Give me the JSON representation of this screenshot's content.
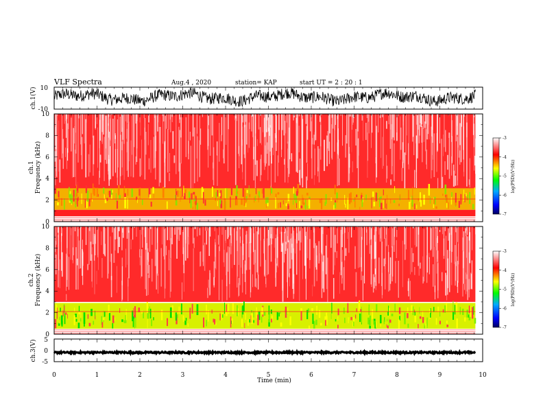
{
  "header": {
    "title": "VLF Spectra",
    "date": "Aug.4  , 2020",
    "station": "station= KAP",
    "start": "start  UT  =   2 : 20 : 1"
  },
  "chart_data": [
    {
      "type": "line",
      "panel": "ch1-waveform",
      "ylabel": "ch.1(V)",
      "ylim": [
        -10,
        10
      ],
      "yticks": [
        "10",
        "-10"
      ],
      "xlim": [
        0,
        10
      ],
      "data_xrange": [
        0,
        9.83
      ],
      "series": [
        {
          "color": "#000000",
          "approx_range": [
            -7,
            9
          ]
        }
      ]
    },
    {
      "type": "heatmap",
      "panel": "ch1-spectrogram",
      "ylabel": "ch.1\nFrequency  (kHz)",
      "ylim": [
        0,
        10
      ],
      "yticks": [
        "0",
        "2",
        "4",
        "6",
        "8",
        "10"
      ],
      "xlim": [
        0,
        10
      ],
      "data_xrange": [
        0,
        9.83
      ],
      "bands_khz": [
        {
          "from": 0.0,
          "to": 0.5,
          "level": "striped"
        },
        {
          "from": 0.5,
          "to": 1.2,
          "level": -3.5
        },
        {
          "from": 1.2,
          "to": 3.0,
          "level": -4.2
        },
        {
          "from": 3.0,
          "to": 10.0,
          "level": -3.3
        }
      ]
    },
    {
      "type": "heatmap",
      "panel": "ch2-spectrogram",
      "ylabel": "ch.2\nFrequency  (kHz)",
      "ylim": [
        0,
        10
      ],
      "yticks": [
        "0",
        "2",
        "4",
        "6",
        "8",
        "10"
      ],
      "xlim": [
        0,
        10
      ],
      "data_xrange": [
        0,
        9.83
      ],
      "bands_khz": [
        {
          "from": 0.0,
          "to": 0.5,
          "level": "striped"
        },
        {
          "from": 0.5,
          "to": 2.6,
          "level": -4.8
        },
        {
          "from": 2.6,
          "to": 3.0,
          "level": -4.2
        },
        {
          "from": 3.0,
          "to": 10.0,
          "level": -3.3
        }
      ]
    },
    {
      "type": "line",
      "panel": "ch3-waveform",
      "ylabel": "ch.3(V)",
      "ylim": [
        -5,
        5
      ],
      "yticks": [
        "5",
        "0",
        "-5"
      ],
      "xlim": [
        0,
        10
      ],
      "data_xrange": [
        0,
        9.83
      ],
      "series": [
        {
          "color": "#000000",
          "approx_range": [
            -1.3,
            -0.6
          ]
        }
      ]
    }
  ],
  "xaxis": {
    "label": "Time  (min)",
    "ticks": [
      "0",
      "1",
      "2",
      "3",
      "4",
      "5",
      "6",
      "7",
      "8",
      "9",
      "10"
    ]
  },
  "colorbar": {
    "label": "log(PSD)(V²/Hz)",
    "range": [
      -7,
      -3
    ],
    "ticks": [
      "-3",
      "-4",
      "-5",
      "-6",
      "-7"
    ],
    "colors": [
      "#000060",
      "#0000ff",
      "#00aaff",
      "#00ff00",
      "#ffff00",
      "#ff0000",
      "#ffffff"
    ]
  }
}
